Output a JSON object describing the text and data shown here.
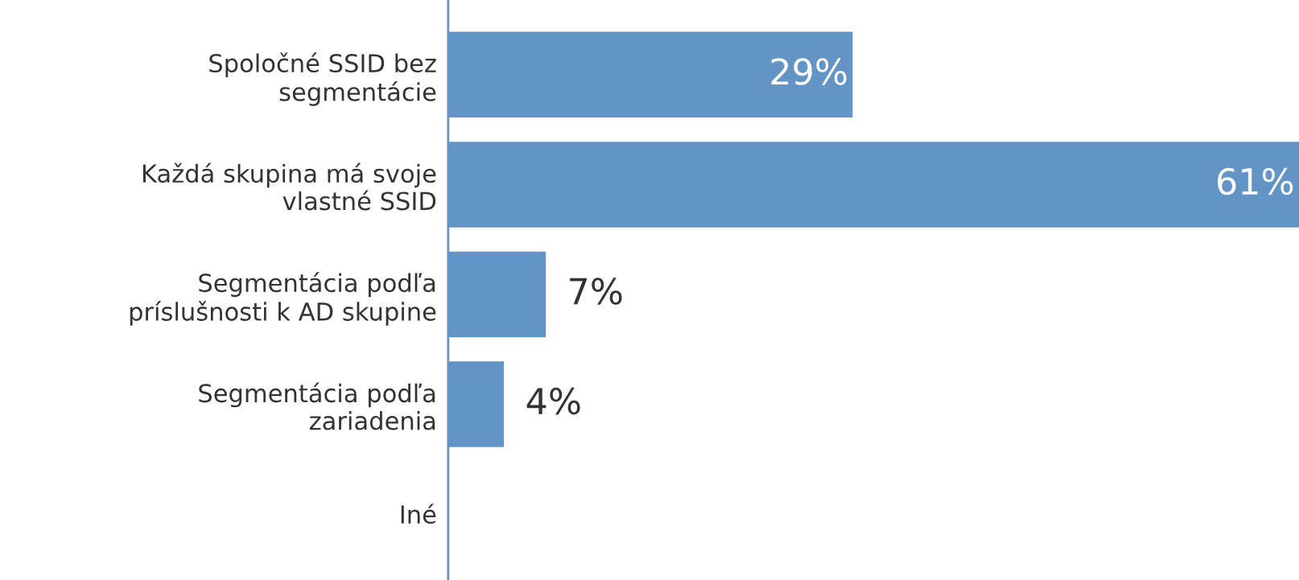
{
  "chart_data": {
    "type": "bar",
    "orientation": "horizontal",
    "categories": [
      "Spoločné SSID bez\nsegmentácie",
      "Každá skupina má svoje\nvlastné SSID",
      "Segmentácia podľa\npríslušnosti k AD skupine",
      "Segmentácia podľa\nzariadenia",
      "Iné"
    ],
    "values": [
      29,
      61,
      7,
      4,
      null
    ],
    "value_labels": [
      "29%",
      "61%",
      "7%",
      "4%",
      null
    ],
    "color": "#6394c6",
    "xlim": [
      0,
      61
    ],
    "tick_labels": "y",
    "grid": false,
    "legend": false
  }
}
